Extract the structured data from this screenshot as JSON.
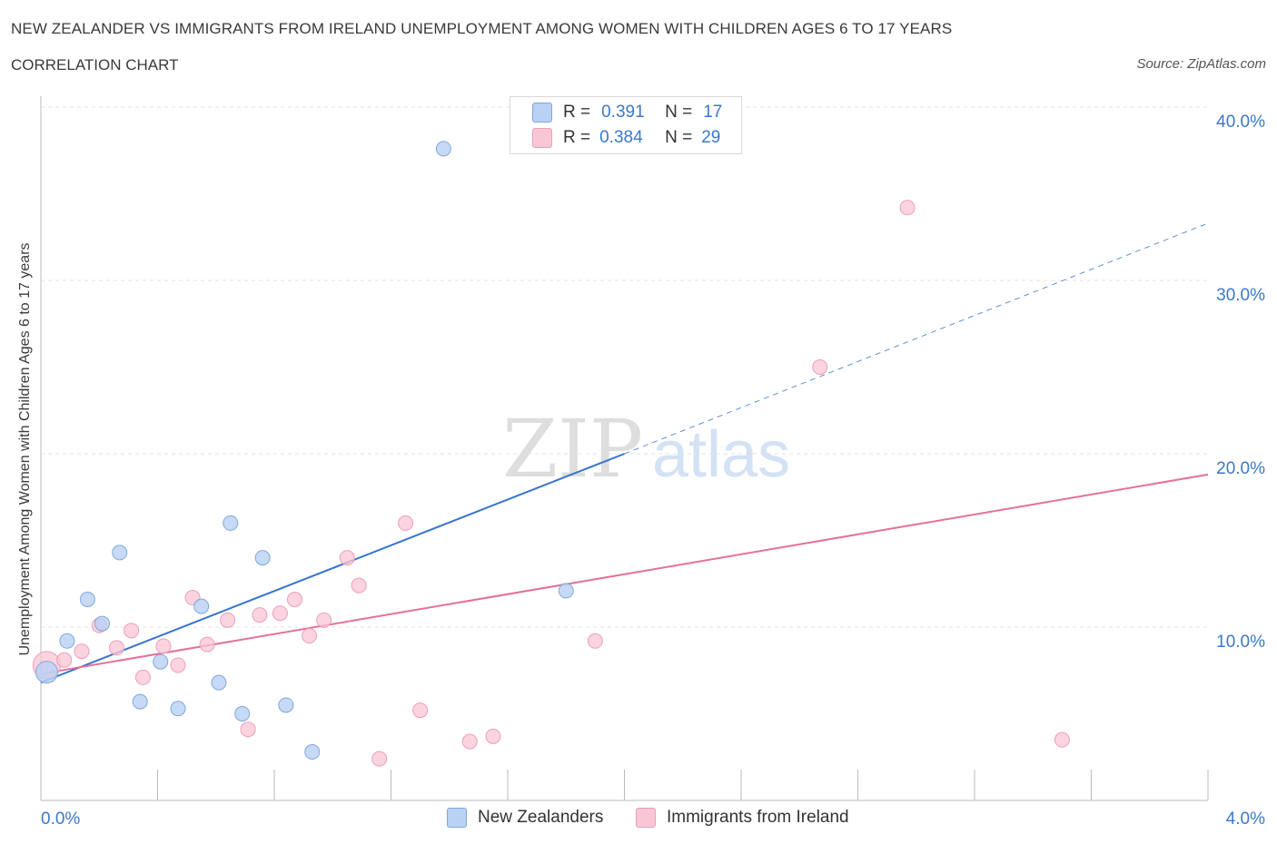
{
  "header": {
    "title": "NEW ZEALANDER VS IMMIGRANTS FROM IRELAND UNEMPLOYMENT AMONG WOMEN WITH CHILDREN AGES 6 TO 17 YEARS",
    "subtitle": "CORRELATION CHART",
    "source": "Source: ZipAtlas.com"
  },
  "watermark": {
    "zip": "ZIP",
    "atlas": "atlas"
  },
  "legend": {
    "rows": [
      {
        "r_label": "R =",
        "r_value": "0.391",
        "n_label": "N =",
        "n_value": "17"
      },
      {
        "r_label": "R =",
        "r_value": "0.384",
        "n_label": "N =",
        "n_value": "29"
      }
    ]
  },
  "bottom_legend": {
    "series1": "New Zealanders",
    "series2": "Immigrants from Ireland"
  },
  "colors": {
    "blue_fill": "#b9d1f3",
    "blue_stroke": "#7fa7dc",
    "blue_line": "#3474cc",
    "pink_fill": "#f9c6d5",
    "pink_stroke": "#ec9fb7",
    "pink_line": "#e4709a",
    "tick_label": "#3b78c9",
    "grid": "#e3e3e3"
  },
  "chart_data": {
    "type": "scatter",
    "title": "NEW ZEALANDER VS IMMIGRANTS FROM IRELAND UNEMPLOYMENT AMONG WOMEN WITH CHILDREN AGES 6 TO 17 YEARS",
    "xlabel": "",
    "ylabel": "Unemployment Among Women with Children Ages 6 to 17 years",
    "xlim": [
      0,
      4.0
    ],
    "ylim": [
      0,
      40.0
    ],
    "x_tick_labels": [
      "0.0%",
      "4.0%"
    ],
    "y_ticks": [
      10,
      20,
      30,
      40
    ],
    "y_tick_labels": [
      "10.0%",
      "20.0%",
      "30.0%",
      "40.0%"
    ],
    "grid": true,
    "legend_position": "top-center",
    "series": [
      {
        "name": "New Zealanders",
        "R": 0.391,
        "N": 17,
        "points": [
          [
            0.02,
            7.4
          ],
          [
            0.09,
            9.2
          ],
          [
            0.16,
            11.6
          ],
          [
            0.21,
            10.2
          ],
          [
            0.27,
            14.3
          ],
          [
            0.34,
            5.7
          ],
          [
            0.41,
            8.0
          ],
          [
            0.47,
            5.3
          ],
          [
            0.55,
            11.2
          ],
          [
            0.61,
            6.8
          ],
          [
            0.65,
            16.0
          ],
          [
            0.69,
            5.0
          ],
          [
            0.76,
            14.0
          ],
          [
            0.84,
            5.5
          ],
          [
            0.93,
            2.8
          ],
          [
            1.38,
            37.6
          ],
          [
            1.8,
            12.1
          ]
        ],
        "trend": {
          "x0": 0.0,
          "y0": 6.8,
          "x1": 2.0,
          "y1": 20.0,
          "dash_x1": 4.0,
          "dash_y1": 33.3
        }
      },
      {
        "name": "Immigrants from Ireland",
        "R": 0.384,
        "N": 29,
        "points": [
          [
            0.02,
            7.8
          ],
          [
            0.08,
            8.1
          ],
          [
            0.14,
            8.6
          ],
          [
            0.2,
            10.1
          ],
          [
            0.26,
            8.8
          ],
          [
            0.31,
            9.8
          ],
          [
            0.35,
            7.1
          ],
          [
            0.42,
            8.9
          ],
          [
            0.47,
            7.8
          ],
          [
            0.52,
            11.7
          ],
          [
            0.57,
            9.0
          ],
          [
            0.64,
            10.4
          ],
          [
            0.71,
            4.1
          ],
          [
            0.75,
            10.7
          ],
          [
            0.82,
            10.8
          ],
          [
            0.87,
            11.6
          ],
          [
            0.92,
            9.5
          ],
          [
            0.97,
            10.4
          ],
          [
            1.05,
            14.0
          ],
          [
            1.09,
            12.4
          ],
          [
            1.16,
            2.4
          ],
          [
            1.25,
            16.0
          ],
          [
            1.3,
            5.2
          ],
          [
            1.47,
            3.4
          ],
          [
            1.55,
            3.7
          ],
          [
            1.9,
            9.2
          ],
          [
            2.67,
            25.0
          ],
          [
            2.97,
            34.2
          ],
          [
            3.5,
            3.5
          ]
        ],
        "trend": {
          "x0": 0.0,
          "y0": 7.3,
          "x1": 4.0,
          "y1": 18.8
        }
      }
    ]
  }
}
